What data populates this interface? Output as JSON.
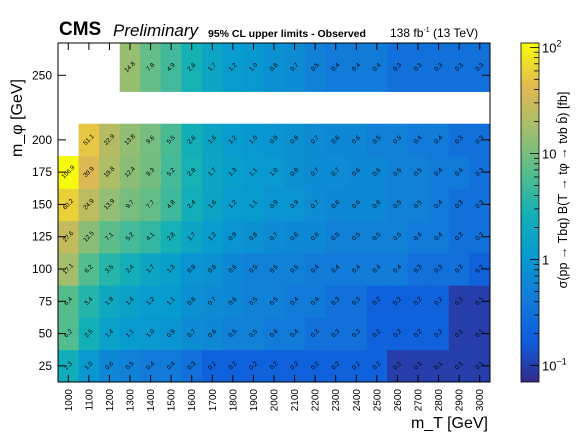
{
  "header": {
    "experiment": "CMS",
    "status": "Preliminary",
    "title": "95% CL upper limits - Observed",
    "lumi_value": "138 fb",
    "lumi_exp": "-1",
    "lumi_energy": "(13 TeV)"
  },
  "chart_data": {
    "type": "heatmap",
    "title": "95% CL upper limits - Observed",
    "xlabel": "m_T [GeV]",
    "ylabel": "m_φ [GeV]",
    "zlabel": "σ(pp → Tbq) B(T → tφ → tνb b̄) [fb]",
    "z_scale": "log",
    "zlim": [
      0.07,
      110
    ],
    "colorbar_ticks": [
      "10^-1",
      "1",
      "10",
      "10^2"
    ],
    "x": [
      1000,
      1100,
      1200,
      1300,
      1400,
      1500,
      1600,
      1700,
      1800,
      1900,
      2000,
      2100,
      2200,
      2300,
      2400,
      2500,
      2600,
      2700,
      2800,
      2900,
      3000
    ],
    "y": [
      25,
      50,
      75,
      100,
      125,
      150,
      175,
      200,
      250
    ],
    "y_tick_labels": [
      "25",
      "50",
      "75",
      "100",
      "125",
      "150",
      "175",
      "200",
      "250"
    ],
    "values": [
      [
        2.3,
        1.0,
        0.6,
        0.5,
        0.4,
        0.4,
        0.3,
        0.2,
        0.2,
        0.2,
        0.2,
        0.2,
        0.2,
        0.2,
        0.2,
        0.2,
        0.1,
        0.1,
        0.1,
        0.1,
        0.1
      ],
      [
        6.2,
        2.5,
        1.4,
        1.1,
        1.0,
        0.9,
        0.7,
        0.6,
        0.5,
        0.5,
        0.4,
        0.4,
        0.3,
        0.3,
        0.3,
        0.2,
        0.2,
        0.2,
        0.2,
        0.1,
        0.1
      ],
      [
        6.4,
        3.4,
        1.9,
        1.4,
        1.2,
        1.1,
        0.8,
        0.7,
        0.6,
        0.5,
        0.5,
        0.4,
        0.4,
        0.3,
        0.3,
        0.2,
        0.2,
        0.2,
        0.2,
        0.1,
        0.1
      ],
      [
        17.1,
        6.2,
        3.5,
        2.4,
        1.7,
        1.3,
        0.9,
        0.8,
        0.6,
        0.5,
        0.5,
        0.5,
        0.4,
        0.4,
        0.4,
        0.4,
        0.4,
        0.3,
        0.3,
        0.3,
        0.2
      ],
      [
        27.6,
        12.5,
        7.1,
        5.2,
        4.1,
        2.8,
        1.7,
        1.2,
        0.9,
        0.8,
        0.7,
        0.6,
        0.6,
        0.5,
        0.5,
        0.5,
        0.5,
        0.4,
        0.4,
        0.3,
        0.3
      ],
      [
        60.2,
        24.9,
        13.9,
        9.7,
        7.7,
        4.8,
        2.4,
        1.6,
        1.2,
        1.1,
        0.9,
        0.9,
        0.7,
        0.6,
        0.6,
        0.6,
        0.5,
        0.5,
        0.4,
        0.3,
        0.3
      ],
      [
        106.9,
        39.9,
        19.8,
        12.4,
        9.3,
        5.2,
        2.8,
        1.7,
        1.3,
        1.1,
        1.0,
        0.8,
        0.7,
        0.7,
        0.6,
        0.6,
        0.5,
        0.5,
        0.4,
        0.4,
        0.3
      ],
      [
        null,
        51.1,
        22.9,
        13.8,
        9.6,
        5.5,
        2.6,
        1.6,
        1.2,
        1.0,
        0.9,
        0.8,
        0.7,
        0.6,
        0.6,
        0.5,
        0.5,
        0.4,
        0.4,
        0.3,
        0.3
      ],
      [
        null,
        null,
        null,
        14.8,
        7.8,
        4.9,
        2.8,
        1.7,
        1.2,
        1.0,
        0.8,
        0.7,
        0.5,
        0.4,
        0.4,
        0.4,
        0.3,
        0.3,
        0.3,
        0.3,
        0.3
      ]
    ],
    "data_labels": [
      [
        "2.3",
        "1.0",
        "0.6",
        "0.5",
        "0.4",
        "0.4",
        "0.3",
        "0.2",
        "0.2",
        "0.2",
        "0.2",
        "0.2",
        "0.2",
        "0.2",
        "0.2",
        "0.2",
        "0.1",
        "0.1",
        "0.1",
        "0.1",
        "0.1"
      ],
      [
        "6.2",
        "2.5",
        "1.4",
        "1.1",
        "1.0",
        "0.9",
        "0.7",
        "0.6",
        "0.5",
        "0.5",
        "0.4",
        "0.4",
        "0.3",
        "0.3",
        "0.3",
        "0.2",
        "0.2",
        "0.2",
        "0.2",
        "0.1",
        "0.1"
      ],
      [
        "6.4",
        "3.4",
        "1.9",
        "1.4",
        "1.2",
        "1.1",
        "0.8",
        "0.7",
        "0.6",
        "0.5",
        "0.5",
        "0.4",
        "0.4",
        "0.3",
        "0.3",
        "0.2",
        "0.2",
        "0.2",
        "0.2",
        "0.1",
        "0.1"
      ],
      [
        "17.1",
        "6.2",
        "3.5",
        "2.4",
        "1.7",
        "1.3",
        "0.9",
        "0.8",
        "0.6",
        "0.5",
        "0.5",
        "0.5",
        "0.4",
        "0.4",
        "0.4",
        "0.4",
        "0.4",
        "0.3",
        "0.3",
        "0.3",
        "0.2"
      ],
      [
        "27.6",
        "12.5",
        "7.1",
        "5.2",
        "4.1",
        "2.8",
        "1.7",
        "1.2",
        "0.9",
        "0.8",
        "0.7",
        "0.6",
        "0.6",
        "0.5",
        "0.5",
        "0.5",
        "0.5",
        "0.4",
        "0.4",
        "0.3",
        "0.3"
      ],
      [
        "60.2",
        "24.9",
        "13.9",
        "9.7",
        "7.7",
        "4.8",
        "2.4",
        "1.6",
        "1.2",
        "1.1",
        "0.9",
        "0.9",
        "0.7",
        "0.6",
        "0.6",
        "0.6",
        "0.5",
        "0.5",
        "0.4",
        "0.3",
        "0.3"
      ],
      [
        "106.9",
        "39.9",
        "19.8",
        "12.4",
        "9.3",
        "5.2",
        "2.8",
        "1.7",
        "1.3",
        "1.1",
        "1.0",
        "0.8",
        "0.7",
        "0.7",
        "0.6",
        "0.6",
        "0.5",
        "0.5",
        "0.4",
        "0.4",
        "0.3"
      ],
      [
        "",
        "51.1",
        "22.9",
        "13.8",
        "9.6",
        "5.5",
        "2.6",
        "1.6",
        "1.2",
        "1.0",
        "0.9",
        "0.8",
        "0.7",
        "0.6",
        "0.6",
        "0.5",
        "0.5",
        "0.4",
        "0.4",
        "0.3",
        "0.3"
      ],
      [
        "",
        "",
        "",
        "14.8",
        "7.8",
        "4.9",
        "2.8",
        "1.7",
        "1.2",
        "1.0",
        "0.8",
        "0.7",
        "0.5",
        "0.4",
        "0.4",
        "0.4",
        "0.3",
        "0.3",
        "0.3",
        "0.3",
        "0.3"
      ]
    ],
    "grid": false
  }
}
